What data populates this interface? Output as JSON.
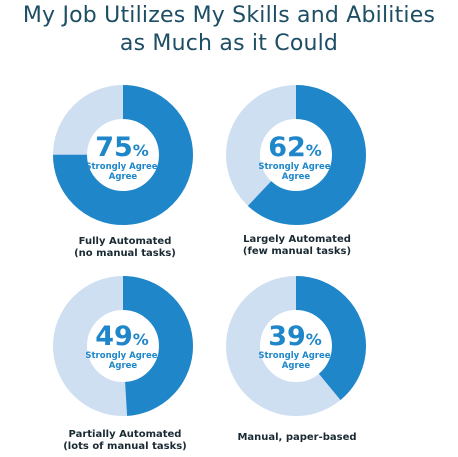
{
  "title": {
    "line1": "My Job Utilizes My Skills and Abilities",
    "line2": "as Much as it Could"
  },
  "colors": {
    "primary": "#1e86c9",
    "secondary": "#cfdff2",
    "title": "#1d4e63",
    "label": "#1a2a33"
  },
  "chart_data": {
    "type": "pie",
    "value_suffix": "%",
    "value_caption": [
      "Strongly Agree/",
      "Agree"
    ],
    "charts": [
      {
        "value": 75,
        "label": [
          "Fully Automated",
          "(no manual tasks)"
        ]
      },
      {
        "value": 62,
        "label": [
          "Largely Automated",
          "(few manual tasks)"
        ]
      },
      {
        "value": 49,
        "label": [
          "Partially Automated",
          "(lots of manual tasks)"
        ]
      },
      {
        "value": 39,
        "label": [
          "Manual, paper-based"
        ]
      }
    ]
  }
}
